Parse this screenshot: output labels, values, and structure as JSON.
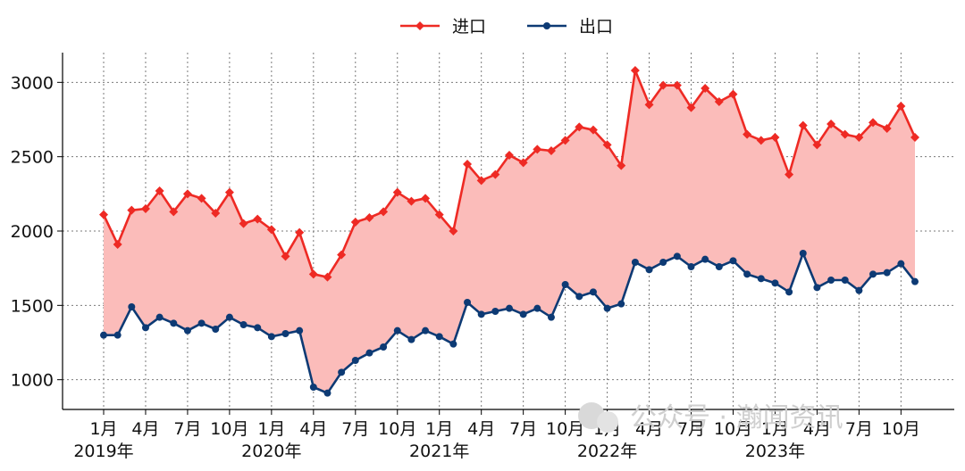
{
  "chart_data": {
    "type": "line",
    "title": "",
    "xlabel": "",
    "ylabel": "",
    "ylim": [
      800,
      3200
    ],
    "yticks": [
      1000,
      1500,
      2000,
      2500,
      3000
    ],
    "grid": true,
    "grid_style": "dotted",
    "legend_position": "top-center",
    "fill_between_series": true,
    "fill_color": "#fbbcba",
    "x_tick_labels": [
      {
        "index": 0,
        "month": "1月",
        "year": "2019年"
      },
      {
        "index": 3,
        "month": "4月",
        "year": ""
      },
      {
        "index": 6,
        "month": "7月",
        "year": ""
      },
      {
        "index": 9,
        "month": "10月",
        "year": ""
      },
      {
        "index": 12,
        "month": "1月",
        "year": "2020年"
      },
      {
        "index": 15,
        "month": "4月",
        "year": ""
      },
      {
        "index": 18,
        "month": "7月",
        "year": ""
      },
      {
        "index": 21,
        "month": "10月",
        "year": ""
      },
      {
        "index": 24,
        "month": "1月",
        "year": "2021年"
      },
      {
        "index": 27,
        "month": "4月",
        "year": ""
      },
      {
        "index": 30,
        "month": "7月",
        "year": ""
      },
      {
        "index": 33,
        "month": "10月",
        "year": ""
      },
      {
        "index": 36,
        "month": "1月",
        "year": "2022年"
      },
      {
        "index": 39,
        "month": "4月",
        "year": ""
      },
      {
        "index": 42,
        "month": "7月",
        "year": ""
      },
      {
        "index": 45,
        "month": "10月",
        "year": ""
      },
      {
        "index": 48,
        "month": "1月",
        "year": "2023年"
      },
      {
        "index": 51,
        "month": "4月",
        "year": ""
      },
      {
        "index": 54,
        "month": "7月",
        "year": ""
      },
      {
        "index": 57,
        "month": "10月",
        "year": ""
      }
    ],
    "series": [
      {
        "name": "进口",
        "color": "#ee2a24",
        "marker": "diamond",
        "values": [
          2110,
          1910,
          2140,
          2150,
          2270,
          2130,
          2250,
          2220,
          2120,
          2260,
          2050,
          2080,
          2010,
          1830,
          1990,
          1710,
          1690,
          1840,
          2060,
          2090,
          2130,
          2260,
          2200,
          2220,
          2110,
          2000,
          2450,
          2340,
          2380,
          2510,
          2460,
          2550,
          2540,
          2610,
          2700,
          2680,
          2580,
          2440,
          3080,
          2850,
          2980,
          2980,
          2830,
          2960,
          2870,
          2920,
          2650,
          2610,
          2630,
          2380,
          2710,
          2580,
          2720,
          2650,
          2630,
          2730,
          2690,
          2840,
          2630
        ]
      },
      {
        "name": "出口",
        "color": "#0d3a74",
        "marker": "circle",
        "values": [
          1300,
          1300,
          1490,
          1350,
          1420,
          1380,
          1330,
          1380,
          1340,
          1420,
          1370,
          1350,
          1290,
          1310,
          1330,
          950,
          910,
          1050,
          1130,
          1180,
          1220,
          1330,
          1270,
          1330,
          1290,
          1240,
          1520,
          1440,
          1460,
          1480,
          1440,
          1480,
          1420,
          1640,
          1560,
          1590,
          1480,
          1510,
          1790,
          1740,
          1790,
          1830,
          1760,
          1810,
          1760,
          1800,
          1710,
          1680,
          1650,
          1590,
          1850,
          1620,
          1670,
          1670,
          1600,
          1710,
          1720,
          1780,
          1660
        ]
      }
    ]
  },
  "watermark": {
    "text": "公众号 · 瀚闻资讯",
    "icon": "wechat-logo-icon"
  }
}
